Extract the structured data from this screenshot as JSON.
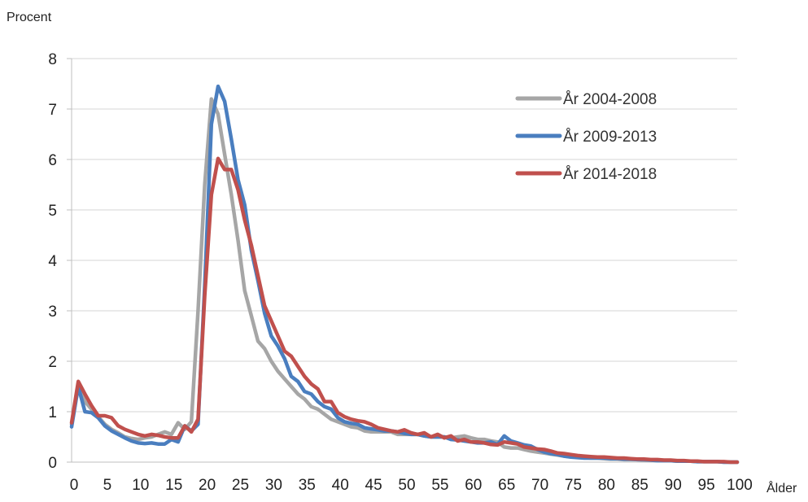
{
  "chart_data": {
    "type": "line",
    "ylabel": "Procent",
    "xlabel": "Ålder",
    "ylim": [
      0,
      8
    ],
    "xlim": [
      0,
      100
    ],
    "yticks": [
      "0",
      "1",
      "2",
      "3",
      "4",
      "5",
      "6",
      "7",
      "8"
    ],
    "xticks": [
      "0",
      "5",
      "10",
      "15",
      "20",
      "25",
      "30",
      "35",
      "40",
      "45",
      "50",
      "55",
      "60",
      "65",
      "70",
      "75",
      "80",
      "85",
      "90",
      "95",
      "100"
    ],
    "grid": true,
    "legend_position": "top-right",
    "series": [
      {
        "name": "År 2004-2008",
        "color": "#a6a6a6",
        "points": [
          [
            0,
            0.75
          ],
          [
            1,
            1.5
          ],
          [
            2,
            1.2
          ],
          [
            3,
            1.05
          ],
          [
            4,
            0.9
          ],
          [
            5,
            0.75
          ],
          [
            6,
            0.65
          ],
          [
            7,
            0.58
          ],
          [
            8,
            0.5
          ],
          [
            9,
            0.47
          ],
          [
            10,
            0.45
          ],
          [
            11,
            0.48
          ],
          [
            12,
            0.5
          ],
          [
            13,
            0.55
          ],
          [
            14,
            0.6
          ],
          [
            15,
            0.55
          ],
          [
            16,
            0.78
          ],
          [
            17,
            0.65
          ],
          [
            18,
            0.8
          ],
          [
            19,
            3.0
          ],
          [
            20,
            5.5
          ],
          [
            21,
            7.2
          ],
          [
            22,
            6.9
          ],
          [
            23,
            6.1
          ],
          [
            24,
            5.3
          ],
          [
            25,
            4.4
          ],
          [
            26,
            3.4
          ],
          [
            27,
            2.9
          ],
          [
            28,
            2.4
          ],
          [
            29,
            2.25
          ],
          [
            30,
            2.0
          ],
          [
            31,
            1.8
          ],
          [
            32,
            1.65
          ],
          [
            33,
            1.5
          ],
          [
            34,
            1.35
          ],
          [
            35,
            1.25
          ],
          [
            36,
            1.1
          ],
          [
            37,
            1.05
          ],
          [
            38,
            0.95
          ],
          [
            39,
            0.85
          ],
          [
            40,
            0.8
          ],
          [
            41,
            0.75
          ],
          [
            42,
            0.7
          ],
          [
            43,
            0.68
          ],
          [
            44,
            0.62
          ],
          [
            45,
            0.6
          ],
          [
            46,
            0.6
          ],
          [
            47,
            0.6
          ],
          [
            48,
            0.6
          ],
          [
            49,
            0.55
          ],
          [
            50,
            0.55
          ],
          [
            51,
            0.55
          ],
          [
            52,
            0.55
          ],
          [
            53,
            0.52
          ],
          [
            54,
            0.5
          ],
          [
            55,
            0.5
          ],
          [
            56,
            0.5
          ],
          [
            57,
            0.48
          ],
          [
            58,
            0.5
          ],
          [
            59,
            0.52
          ],
          [
            60,
            0.48
          ],
          [
            61,
            0.45
          ],
          [
            62,
            0.45
          ],
          [
            63,
            0.42
          ],
          [
            64,
            0.4
          ],
          [
            65,
            0.3
          ],
          [
            66,
            0.28
          ],
          [
            67,
            0.28
          ],
          [
            68,
            0.25
          ],
          [
            69,
            0.22
          ],
          [
            70,
            0.2
          ],
          [
            71,
            0.18
          ],
          [
            72,
            0.16
          ],
          [
            73,
            0.14
          ],
          [
            74,
            0.12
          ],
          [
            75,
            0.11
          ],
          [
            76,
            0.1
          ],
          [
            77,
            0.09
          ],
          [
            78,
            0.08
          ],
          [
            79,
            0.08
          ],
          [
            80,
            0.07
          ],
          [
            81,
            0.06
          ],
          [
            82,
            0.06
          ],
          [
            83,
            0.05
          ],
          [
            84,
            0.05
          ],
          [
            85,
            0.05
          ],
          [
            86,
            0.04
          ],
          [
            87,
            0.04
          ],
          [
            88,
            0.03
          ],
          [
            89,
            0.03
          ],
          [
            90,
            0.03
          ],
          [
            91,
            0.02
          ],
          [
            92,
            0.02
          ],
          [
            93,
            0.02
          ],
          [
            94,
            0.01
          ],
          [
            95,
            0.01
          ],
          [
            96,
            0.01
          ],
          [
            97,
            0.01
          ],
          [
            98,
            0.0
          ],
          [
            99,
            0.0
          ],
          [
            100,
            0.0
          ]
        ]
      },
      {
        "name": "År 2009-2013",
        "color": "#4a7ebf",
        "points": [
          [
            0,
            0.7
          ],
          [
            1,
            1.5
          ],
          [
            2,
            1.0
          ],
          [
            3,
            0.98
          ],
          [
            4,
            0.88
          ],
          [
            5,
            0.72
          ],
          [
            6,
            0.62
          ],
          [
            7,
            0.55
          ],
          [
            8,
            0.48
          ],
          [
            9,
            0.42
          ],
          [
            10,
            0.38
          ],
          [
            11,
            0.37
          ],
          [
            12,
            0.38
          ],
          [
            13,
            0.36
          ],
          [
            14,
            0.36
          ],
          [
            15,
            0.45
          ],
          [
            16,
            0.4
          ],
          [
            17,
            0.72
          ],
          [
            18,
            0.62
          ],
          [
            19,
            0.75
          ],
          [
            20,
            3.5
          ],
          [
            21,
            6.7
          ],
          [
            22,
            7.45
          ],
          [
            23,
            7.15
          ],
          [
            24,
            6.4
          ],
          [
            25,
            5.6
          ],
          [
            26,
            5.1
          ],
          [
            27,
            4.2
          ],
          [
            28,
            3.6
          ],
          [
            29,
            2.95
          ],
          [
            30,
            2.5
          ],
          [
            31,
            2.3
          ],
          [
            32,
            2.05
          ],
          [
            33,
            1.7
          ],
          [
            34,
            1.6
          ],
          [
            35,
            1.4
          ],
          [
            36,
            1.35
          ],
          [
            37,
            1.2
          ],
          [
            38,
            1.1
          ],
          [
            39,
            1.05
          ],
          [
            40,
            0.88
          ],
          [
            41,
            0.8
          ],
          [
            42,
            0.77
          ],
          [
            43,
            0.75
          ],
          [
            44,
            0.68
          ],
          [
            45,
            0.66
          ],
          [
            46,
            0.64
          ],
          [
            47,
            0.62
          ],
          [
            48,
            0.62
          ],
          [
            49,
            0.6
          ],
          [
            50,
            0.57
          ],
          [
            51,
            0.55
          ],
          [
            52,
            0.55
          ],
          [
            53,
            0.52
          ],
          [
            54,
            0.5
          ],
          [
            55,
            0.5
          ],
          [
            56,
            0.5
          ],
          [
            57,
            0.45
          ],
          [
            58,
            0.44
          ],
          [
            59,
            0.42
          ],
          [
            60,
            0.4
          ],
          [
            61,
            0.38
          ],
          [
            62,
            0.38
          ],
          [
            63,
            0.4
          ],
          [
            64,
            0.35
          ],
          [
            65,
            0.52
          ],
          [
            66,
            0.42
          ],
          [
            67,
            0.38
          ],
          [
            68,
            0.34
          ],
          [
            69,
            0.32
          ],
          [
            70,
            0.25
          ],
          [
            71,
            0.2
          ],
          [
            72,
            0.17
          ],
          [
            73,
            0.15
          ],
          [
            74,
            0.12
          ],
          [
            75,
            0.1
          ],
          [
            76,
            0.09
          ],
          [
            77,
            0.08
          ],
          [
            78,
            0.08
          ],
          [
            79,
            0.08
          ],
          [
            80,
            0.08
          ],
          [
            81,
            0.07
          ],
          [
            82,
            0.07
          ],
          [
            83,
            0.06
          ],
          [
            84,
            0.06
          ],
          [
            85,
            0.05
          ],
          [
            86,
            0.05
          ],
          [
            87,
            0.04
          ],
          [
            88,
            0.03
          ],
          [
            89,
            0.03
          ],
          [
            90,
            0.03
          ],
          [
            91,
            0.02
          ],
          [
            92,
            0.02
          ],
          [
            93,
            0.02
          ],
          [
            94,
            0.01
          ],
          [
            95,
            0.01
          ],
          [
            96,
            0.01
          ],
          [
            97,
            0.01
          ],
          [
            98,
            0.0
          ],
          [
            99,
            0.0
          ],
          [
            100,
            0.0
          ]
        ]
      },
      {
        "name": "År 2014-2018",
        "color": "#c0504d",
        "points": [
          [
            0,
            0.78
          ],
          [
            1,
            1.6
          ],
          [
            2,
            1.35
          ],
          [
            3,
            1.12
          ],
          [
            4,
            0.92
          ],
          [
            5,
            0.92
          ],
          [
            6,
            0.88
          ],
          [
            7,
            0.72
          ],
          [
            8,
            0.65
          ],
          [
            9,
            0.6
          ],
          [
            10,
            0.55
          ],
          [
            11,
            0.52
          ],
          [
            12,
            0.55
          ],
          [
            13,
            0.53
          ],
          [
            14,
            0.5
          ],
          [
            15,
            0.48
          ],
          [
            16,
            0.48
          ],
          [
            17,
            0.72
          ],
          [
            18,
            0.6
          ],
          [
            19,
            0.85
          ],
          [
            20,
            3.3
          ],
          [
            21,
            5.3
          ],
          [
            22,
            6.02
          ],
          [
            23,
            5.8
          ],
          [
            24,
            5.8
          ],
          [
            25,
            5.4
          ],
          [
            26,
            4.8
          ],
          [
            27,
            4.3
          ],
          [
            28,
            3.7
          ],
          [
            29,
            3.1
          ],
          [
            30,
            2.8
          ],
          [
            31,
            2.5
          ],
          [
            32,
            2.2
          ],
          [
            33,
            2.1
          ],
          [
            34,
            1.9
          ],
          [
            35,
            1.7
          ],
          [
            36,
            1.55
          ],
          [
            37,
            1.45
          ],
          [
            38,
            1.2
          ],
          [
            39,
            1.2
          ],
          [
            40,
            0.98
          ],
          [
            41,
            0.9
          ],
          [
            42,
            0.85
          ],
          [
            43,
            0.82
          ],
          [
            44,
            0.8
          ],
          [
            45,
            0.75
          ],
          [
            46,
            0.68
          ],
          [
            47,
            0.65
          ],
          [
            48,
            0.62
          ],
          [
            49,
            0.6
          ],
          [
            50,
            0.64
          ],
          [
            51,
            0.58
          ],
          [
            52,
            0.55
          ],
          [
            53,
            0.58
          ],
          [
            54,
            0.5
          ],
          [
            55,
            0.55
          ],
          [
            56,
            0.48
          ],
          [
            57,
            0.52
          ],
          [
            58,
            0.42
          ],
          [
            59,
            0.45
          ],
          [
            60,
            0.4
          ],
          [
            61,
            0.4
          ],
          [
            62,
            0.38
          ],
          [
            63,
            0.35
          ],
          [
            64,
            0.34
          ],
          [
            65,
            0.4
          ],
          [
            66,
            0.38
          ],
          [
            67,
            0.36
          ],
          [
            68,
            0.3
          ],
          [
            69,
            0.28
          ],
          [
            70,
            0.26
          ],
          [
            71,
            0.25
          ],
          [
            72,
            0.22
          ],
          [
            73,
            0.18
          ],
          [
            74,
            0.17
          ],
          [
            75,
            0.15
          ],
          [
            76,
            0.13
          ],
          [
            77,
            0.12
          ],
          [
            78,
            0.11
          ],
          [
            79,
            0.1
          ],
          [
            80,
            0.1
          ],
          [
            81,
            0.09
          ],
          [
            82,
            0.08
          ],
          [
            83,
            0.08
          ],
          [
            84,
            0.07
          ],
          [
            85,
            0.06
          ],
          [
            86,
            0.06
          ],
          [
            87,
            0.05
          ],
          [
            88,
            0.05
          ],
          [
            89,
            0.04
          ],
          [
            90,
            0.04
          ],
          [
            91,
            0.03
          ],
          [
            92,
            0.03
          ],
          [
            93,
            0.02
          ],
          [
            94,
            0.02
          ],
          [
            95,
            0.01
          ],
          [
            96,
            0.01
          ],
          [
            97,
            0.01
          ],
          [
            98,
            0.01
          ],
          [
            99,
            0.0
          ],
          [
            100,
            0.0
          ]
        ]
      }
    ]
  }
}
